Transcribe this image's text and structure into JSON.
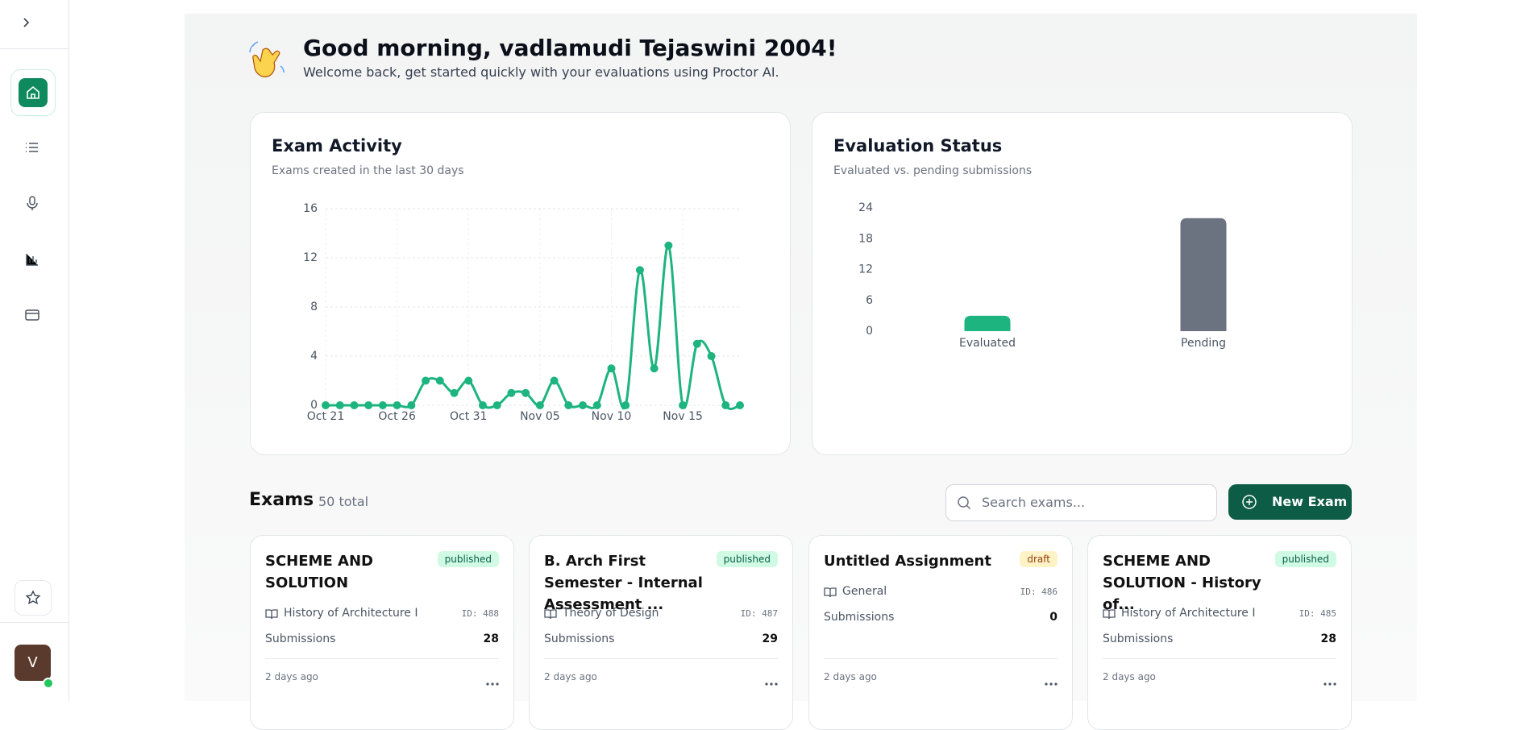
{
  "header": {
    "title": "Good morning, vadlamudi Tejaswini 2004!",
    "subtitle": "Welcome back, get started quickly with your evaluations using Proctor AI."
  },
  "sidebar": {
    "avatar": "V"
  },
  "chart_data": [
    {
      "type": "line",
      "title": "Exam Activity",
      "subtitle": "Exams created in the last 30 days",
      "categories": [
        "Oct 21",
        null,
        null,
        null,
        null,
        "Oct 26",
        null,
        null,
        null,
        null,
        "Oct 31",
        null,
        null,
        null,
        null,
        "Nov 05",
        null,
        null,
        null,
        null,
        "Nov 10",
        null,
        null,
        null,
        null,
        "Nov 15",
        null,
        null,
        null,
        null
      ],
      "series": [
        {
          "name": "Exams",
          "color": "#1db47f",
          "values": [
            0,
            0,
            0,
            0,
            0,
            0,
            0,
            2,
            2,
            1,
            2,
            0,
            0,
            1,
            1,
            0,
            2,
            0,
            0,
            0,
            3,
            0,
            11,
            3,
            13,
            0,
            5,
            4,
            0,
            0
          ]
        }
      ],
      "ylim": [
        0,
        16
      ],
      "yticks": [
        0,
        4,
        8,
        12,
        16
      ],
      "grid": true
    },
    {
      "type": "bar",
      "title": "Evaluation Status",
      "subtitle": "Evaluated vs. pending submissions",
      "categories": [
        "Evaluated",
        "Pending"
      ],
      "values": [
        3,
        22
      ],
      "colors": [
        "#1db47f",
        "#6b7280"
      ],
      "ylim": [
        0,
        24
      ],
      "yticks": [
        0,
        6,
        12,
        18,
        24
      ],
      "grid": false
    }
  ],
  "exams": {
    "title": "Exams",
    "total": "50 total",
    "search_placeholder": "Search exams...",
    "new_button": "New Exam",
    "cards": [
      {
        "title": "SCHEME AND SOLUTION",
        "status": "published",
        "subject": "History of Architecture I",
        "id": "ID: 488",
        "submissions_label": "Submissions",
        "submissions": "28",
        "time": "2 days ago"
      },
      {
        "title": "B. Arch First Semester - Internal Assessment ...",
        "status": "published",
        "subject": "Theory of Design",
        "id": "ID: 487",
        "submissions_label": "Submissions",
        "submissions": "29",
        "time": "2 days ago"
      },
      {
        "title": "Untitled Assignment",
        "status": "draft",
        "subject": "General",
        "id": "ID: 486",
        "submissions_label": "Submissions",
        "submissions": "0",
        "time": "2 days ago"
      },
      {
        "title": "SCHEME AND SOLUTION - History of...",
        "status": "published",
        "subject": "History of Architecture I",
        "id": "ID: 485",
        "submissions_label": "Submissions",
        "submissions": "28",
        "time": "2 days ago"
      }
    ]
  }
}
